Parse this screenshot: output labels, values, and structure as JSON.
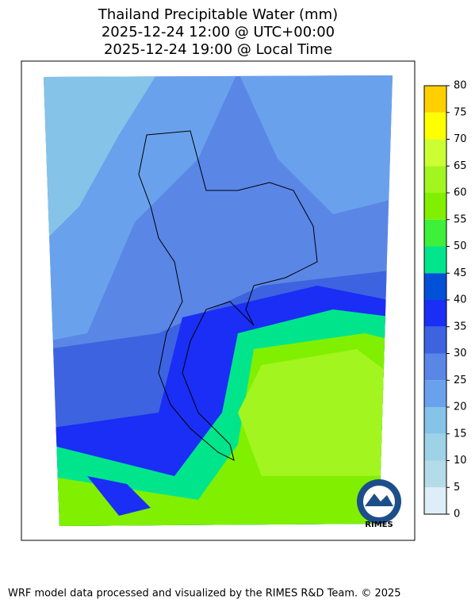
{
  "title": [
    "Thailand Precipitable Water (mm)",
    "2025-12-24 12:00 @ UTC+00:00",
    "2025-12-24 19:00 @ Local Time"
  ],
  "colorbar": {
    "ticks": [
      0,
      5,
      10,
      15,
      20,
      25,
      30,
      35,
      40,
      45,
      50,
      55,
      60,
      65,
      70,
      75,
      80
    ],
    "colors": [
      "#deeef8",
      "#b4dbe8",
      "#9ed2e6",
      "#85c3e8",
      "#6aa1ec",
      "#5a86e6",
      "#3d63e0",
      "#1a2ef5",
      "#0050d8",
      "#00e58c",
      "#3ef03a",
      "#80f000",
      "#a2f51e",
      "#ccff33",
      "#ffff00",
      "#ffd000"
    ]
  },
  "logo_text": "RIMES",
  "footer": "WRF model data processed and visualized by the RIMES R&D Team. © 2025"
}
